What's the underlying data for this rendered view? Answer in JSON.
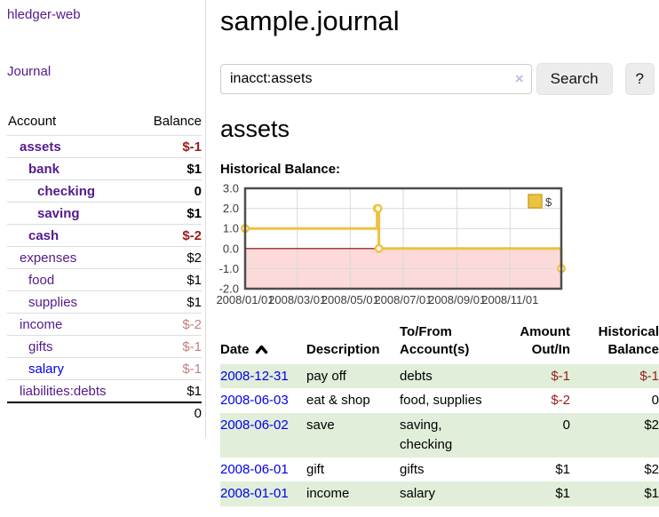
{
  "app": {
    "brand": "hledger-web",
    "nav_journal": "Journal"
  },
  "colors": {
    "link_purple": "#551a8b",
    "link_blue": "#0000ee",
    "negative_strong": "#9b1b1b",
    "negative_muted": "#c08080",
    "row_shade_green": "#e1eed9",
    "chart_series_gold": "#edc240",
    "chart_negative_fill": "#fcdada",
    "chart_zero_line": "#8b0000",
    "chart_grid": "#d9d9d9",
    "chart_border": "#4d4d4d"
  },
  "sidebar": {
    "accounts_header": {
      "account": "Account",
      "balance": "Balance"
    },
    "accounts": [
      {
        "name": "assets",
        "indent": 1,
        "balance": "$-1",
        "bold": true,
        "negative": "strong"
      },
      {
        "name": "bank",
        "indent": 2,
        "balance": "$1",
        "bold": true
      },
      {
        "name": "checking",
        "indent": 3,
        "balance": "0",
        "bold": true
      },
      {
        "name": "saving",
        "indent": 3,
        "balance": "$1",
        "bold": true
      },
      {
        "name": "cash",
        "indent": 2,
        "balance": "$-2",
        "bold": true,
        "negative": "strong"
      },
      {
        "name": "expenses",
        "indent": 1,
        "balance": "$2"
      },
      {
        "name": "food",
        "indent": 2,
        "balance": "$1"
      },
      {
        "name": "supplies",
        "indent": 2,
        "balance": "$1"
      },
      {
        "name": "income",
        "indent": 1,
        "balance": "$-2",
        "negative": "muted"
      },
      {
        "name": "gifts",
        "indent": 2,
        "balance": "$-1",
        "negative": "muted"
      },
      {
        "name": "salary",
        "indent": 2,
        "balance": "$-1",
        "negative": "muted",
        "link_color": "blue"
      },
      {
        "name": "liabilities:debts",
        "indent": 1,
        "balance": "$1"
      }
    ],
    "total": "0"
  },
  "header": {
    "title": "sample.journal"
  },
  "search": {
    "value": "inacct:assets",
    "clear_icon": "×",
    "button": "Search",
    "help": "?"
  },
  "account_page": {
    "heading": "assets",
    "chart_label": "Historical Balance:"
  },
  "chart_data": {
    "type": "line",
    "title": "Historical Balance",
    "step": true,
    "series": [
      {
        "name": "$",
        "color": "#edc240",
        "points": [
          {
            "date": "2008-01-01",
            "x": 0,
            "y": 1
          },
          {
            "date": "2008-06-01",
            "x": 152,
            "y": 2
          },
          {
            "date": "2008-06-02",
            "x": 153,
            "y": 2
          },
          {
            "date": "2008-06-03",
            "x": 154,
            "y": 0
          },
          {
            "date": "2008-12-31",
            "x": 364,
            "y": -1
          }
        ]
      }
    ],
    "x_ticks": [
      {
        "x": 0,
        "label": "2008/01/01"
      },
      {
        "x": 60,
        "label": "2008/03/01"
      },
      {
        "x": 121,
        "label": "2008/05/01"
      },
      {
        "x": 182,
        "label": "2008/07/01"
      },
      {
        "x": 244,
        "label": "2008/09/01"
      },
      {
        "x": 305,
        "label": "2008/11/01"
      }
    ],
    "y_ticks": [
      {
        "y": 3,
        "label": "3.0"
      },
      {
        "y": 2,
        "label": "2.0"
      },
      {
        "y": 1,
        "label": "1.0"
      },
      {
        "y": 0,
        "label": "0.0"
      },
      {
        "y": -1,
        "label": "-1.0"
      },
      {
        "y": -2,
        "label": "-2.0"
      }
    ],
    "xlim": [
      0,
      364
    ],
    "ylim": [
      -2,
      3
    ],
    "grid": true,
    "legend_position": "top-right",
    "negative_region_shaded": true
  },
  "register": {
    "columns": [
      {
        "lines": [
          "Date"
        ],
        "align": "left",
        "sortable": true,
        "sort_dir": "asc"
      },
      {
        "lines": [
          "Description"
        ],
        "align": "left"
      },
      {
        "lines": [
          "To/From",
          "Account(s)"
        ],
        "align": "left"
      },
      {
        "lines": [
          "Amount",
          "Out/In"
        ],
        "align": "right"
      },
      {
        "lines": [
          "Historical",
          "Balance"
        ],
        "align": "right"
      }
    ],
    "rows": [
      {
        "date": "2008-12-31",
        "description": "pay off",
        "accounts": "debts",
        "amount": "$-1",
        "balance": "$-1",
        "amount_negative": true,
        "balance_negative": true,
        "shade": true
      },
      {
        "date": "2008-06-03",
        "description": "eat & shop",
        "accounts": "food, supplies",
        "amount": "$-2",
        "balance": "0",
        "amount_negative": true,
        "balance_negative": false,
        "shade": false
      },
      {
        "date": "2008-06-02",
        "description": "save",
        "accounts": "saving, checking",
        "amount": "0",
        "balance": "$2",
        "amount_negative": false,
        "balance_negative": false,
        "shade": true
      },
      {
        "date": "2008-06-01",
        "description": "gift",
        "accounts": "gifts",
        "amount": "$1",
        "balance": "$2",
        "amount_negative": false,
        "balance_negative": false,
        "shade": false
      },
      {
        "date": "2008-01-01",
        "description": "income",
        "accounts": "salary",
        "amount": "$1",
        "balance": "$1",
        "amount_negative": false,
        "balance_negative": false,
        "shade": true
      }
    ]
  }
}
